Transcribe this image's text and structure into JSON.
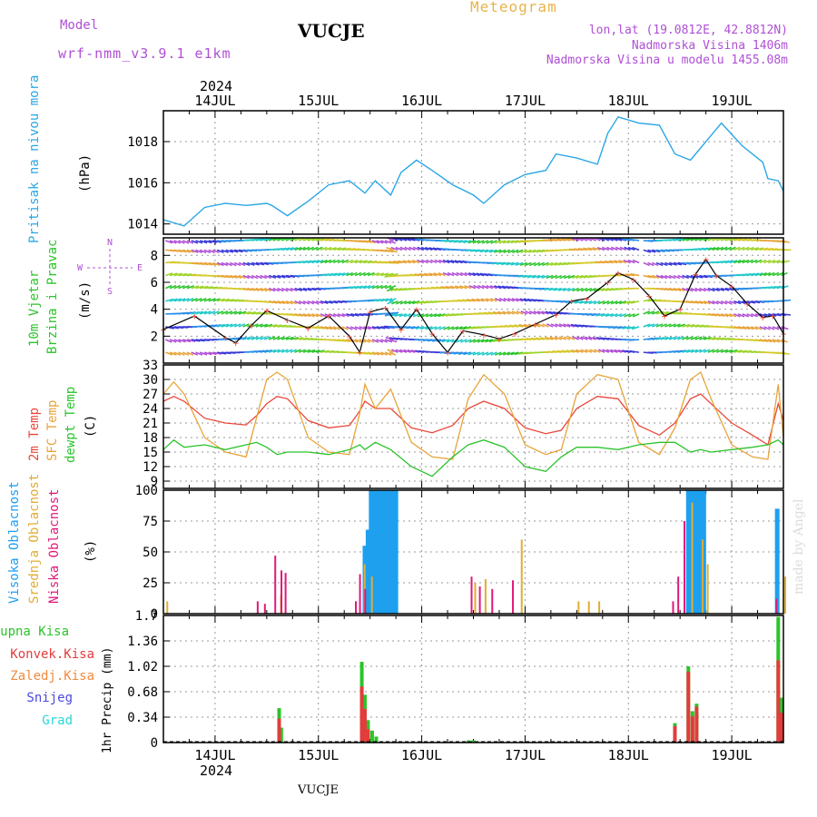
{
  "header": {
    "model_label": "Model",
    "model_name": "wrf-nmm_v3.9.1 e1km",
    "station": "VUCJE",
    "title": "Meteogram",
    "lonlat": "lon,lat (19.0812E, 42.8812N)",
    "elevation": "Nadmorska Visina 1406m",
    "model_elevation": "Nadmorska Visina u modelu 1455.08m"
  },
  "footer": {
    "station": "VUCJE",
    "watermark": "made by Angel"
  },
  "time_axis": {
    "year": "2024",
    "days": [
      "14JUL",
      "15JUL",
      "16JUL",
      "17JUL",
      "18JUL",
      "19JUL"
    ],
    "start_day": 13.5,
    "end_day": 19.5
  },
  "colors": {
    "pressure": "#2aa7e6",
    "temp": "#e9473a",
    "sfc_temp": "#e8a43a",
    "dewpt": "#2cc32c",
    "high_cloud": "#1ea0ef",
    "mid_cloud": "#e0ad36",
    "low_cloud": "#e0197a",
    "total_precip": "#2bc42b",
    "conv_precip": "#e23c3c",
    "frz_precip": "#f08a3c",
    "snow": "#4a4adf",
    "graupel": "#2ad7d7",
    "wind_arrow_label": "#b04fd6"
  },
  "panels": {
    "pressure": {
      "labels": [
        "Pritisak na nivou mora"
      ],
      "unit": "(hPa)",
      "yticks": [
        "1014",
        "1016",
        "1018"
      ]
    },
    "wind": {
      "labels": [
        "10m Vjetar",
        "Brzina i Pravac"
      ],
      "unit": "(m/s)",
      "compass": [
        "N",
        "W",
        "E",
        "S"
      ],
      "yticks": [
        "2",
        "4",
        "6",
        "8"
      ]
    },
    "temperature": {
      "labels": [
        "2m Temp",
        "SFC Temp",
        "dewpt Temp"
      ],
      "unit": "(C)",
      "yticks": [
        "9",
        "12",
        "15",
        "18",
        "21",
        "24",
        "27",
        "30",
        "33"
      ]
    },
    "cloud": {
      "labels": [
        "Visoka Oblacnost",
        "Srednja Oblacnost",
        "Niska Oblacnost"
      ],
      "unit": "(%)",
      "yticks": [
        "0",
        "25",
        "50",
        "75",
        "100"
      ]
    },
    "precip": {
      "labels": [
        "Ukupna Kisa",
        "Konvek.Kisa",
        "Zaledj.Kisa",
        "Snijeg",
        "Grad"
      ],
      "unit": "1hr Precip (mm)",
      "yticks": [
        "0",
        "0.34",
        "0.68",
        "1.02",
        "1.36",
        "1.7"
      ]
    }
  },
  "chart_data": [
    {
      "type": "line",
      "title": "Pritisak na nivou mora",
      "ylabel": "(hPa)",
      "ylim": [
        1013.5,
        1019.5
      ],
      "series": [
        {
          "name": "Pritisak na nivou mora",
          "x_day": [
            13.5,
            13.7,
            13.9,
            14.1,
            14.3,
            14.5,
            14.55,
            14.7,
            14.9,
            15.1,
            15.3,
            15.45,
            15.55,
            15.7,
            15.8,
            15.95,
            16.1,
            16.3,
            16.5,
            16.6,
            16.8,
            17.0,
            17.2,
            17.3,
            17.5,
            17.7,
            17.8,
            17.9,
            18.1,
            18.3,
            18.45,
            18.6,
            18.8,
            18.9,
            19.1,
            19.3,
            19.35,
            19.45,
            19.5
          ],
          "values": [
            1014.2,
            1013.9,
            1014.8,
            1015.0,
            1014.9,
            1015.0,
            1014.9,
            1014.4,
            1015.1,
            1015.9,
            1016.1,
            1015.5,
            1016.1,
            1015.4,
            1016.5,
            1017.1,
            1016.6,
            1015.9,
            1015.4,
            1015.0,
            1015.9,
            1016.4,
            1016.6,
            1017.4,
            1017.2,
            1016.9,
            1018.4,
            1019.2,
            1018.9,
            1018.8,
            1017.4,
            1017.1,
            1018.3,
            1018.9,
            1017.8,
            1017.0,
            1016.2,
            1016.1,
            1015.6
          ]
        }
      ]
    },
    {
      "type": "line",
      "title": "10m Vjetar Brzina i Pravac",
      "ylabel": "(m/s)",
      "ylim": [
        0,
        9.3
      ],
      "series": [
        {
          "name": "10m Vjetar",
          "x_day": [
            13.5,
            13.8,
            14.1,
            14.2,
            14.35,
            14.5,
            14.7,
            14.9,
            15.1,
            15.3,
            15.4,
            15.5,
            15.65,
            15.8,
            15.95,
            16.1,
            16.25,
            16.4,
            16.6,
            16.75,
            16.9,
            17.1,
            17.3,
            17.45,
            17.6,
            17.8,
            17.9,
            18.05,
            18.2,
            18.35,
            18.5,
            18.65,
            18.75,
            18.85,
            19.0,
            19.15,
            19.3,
            19.4,
            19.5
          ],
          "values": [
            2.5,
            3.5,
            1.9,
            1.5,
            2.8,
            3.9,
            3.2,
            2.6,
            3.5,
            2.0,
            0.8,
            3.8,
            4.1,
            2.5,
            4.0,
            2.2,
            0.8,
            2.4,
            2.1,
            1.8,
            2.2,
            2.9,
            3.6,
            4.6,
            4.8,
            6.0,
            6.7,
            6.2,
            5.0,
            3.5,
            4.0,
            6.6,
            7.7,
            6.5,
            5.7,
            4.4,
            3.4,
            3.5,
            2.2
          ]
        }
      ]
    },
    {
      "type": "line",
      "title": "2m Temp / SFC Temp / dewpt Temp",
      "ylabel": "(C)",
      "ylim": [
        7.5,
        33
      ],
      "series": [
        {
          "name": "2m Temp",
          "x_day": [
            13.5,
            13.6,
            13.7,
            13.9,
            14.1,
            14.3,
            14.4,
            14.5,
            14.6,
            14.7,
            14.9,
            15.1,
            15.3,
            15.4,
            15.45,
            15.55,
            15.7,
            15.9,
            16.1,
            16.3,
            16.45,
            16.6,
            16.8,
            17.0,
            17.2,
            17.35,
            17.5,
            17.7,
            17.9,
            18.1,
            18.3,
            18.45,
            18.6,
            18.7,
            18.8,
            19.0,
            19.2,
            19.35,
            19.45,
            19.5
          ],
          "values": [
            25.5,
            26.5,
            25.5,
            22.0,
            21.0,
            20.6,
            22.5,
            25.0,
            26.5,
            26.0,
            21.5,
            20.0,
            20.5,
            23.5,
            25.5,
            24.0,
            24.0,
            20.0,
            19.0,
            20.5,
            24.0,
            25.5,
            24.0,
            20.0,
            18.8,
            19.5,
            24.0,
            26.5,
            26.0,
            20.5,
            18.5,
            21.0,
            26.0,
            27.0,
            25.0,
            21.0,
            18.5,
            16.5,
            25.0,
            21.5
          ]
        },
        {
          "name": "SFC Temp",
          "x_day": [
            13.5,
            13.6,
            13.7,
            13.9,
            14.1,
            14.3,
            14.4,
            14.5,
            14.6,
            14.7,
            14.9,
            15.1,
            15.3,
            15.4,
            15.45,
            15.55,
            15.7,
            15.9,
            16.1,
            16.3,
            16.45,
            16.6,
            16.8,
            17.0,
            17.2,
            17.35,
            17.5,
            17.7,
            17.9,
            18.1,
            18.3,
            18.45,
            18.6,
            18.7,
            18.8,
            19.0,
            19.2,
            19.35,
            19.45,
            19.5
          ],
          "values": [
            27.0,
            29.5,
            27.0,
            18.0,
            15.0,
            14.0,
            22.0,
            30.0,
            31.5,
            30.0,
            18.0,
            15.0,
            14.5,
            23.0,
            29.0,
            24.0,
            28.0,
            17.0,
            14.0,
            13.5,
            26.0,
            31.0,
            27.0,
            16.5,
            14.5,
            15.5,
            27.0,
            31.0,
            30.0,
            17.0,
            14.5,
            20.0,
            30.0,
            31.5,
            26.0,
            16.5,
            14.0,
            13.5,
            29.0,
            18.0
          ]
        },
        {
          "name": "dewpt Temp",
          "x_day": [
            13.5,
            13.6,
            13.7,
            13.9,
            14.1,
            14.3,
            14.4,
            14.5,
            14.6,
            14.7,
            14.9,
            15.1,
            15.3,
            15.4,
            15.45,
            15.55,
            15.7,
            15.9,
            16.1,
            16.3,
            16.45,
            16.6,
            16.8,
            17.0,
            17.2,
            17.35,
            17.5,
            17.7,
            17.9,
            18.1,
            18.3,
            18.45,
            18.6,
            18.7,
            18.8,
            19.0,
            19.2,
            19.35,
            19.45,
            19.5
          ],
          "values": [
            15.5,
            17.5,
            16.0,
            16.5,
            15.5,
            16.5,
            17.0,
            16.0,
            14.5,
            15.0,
            15.0,
            14.5,
            15.5,
            16.5,
            15.5,
            17.0,
            15.5,
            12.0,
            10.0,
            14.0,
            16.5,
            17.5,
            16.0,
            12.0,
            11.0,
            14.0,
            16.0,
            16.0,
            15.5,
            16.5,
            17.0,
            17.0,
            15.0,
            15.5,
            15.0,
            15.5,
            16.0,
            16.5,
            17.5,
            16.5
          ]
        }
      ]
    },
    {
      "type": "bar",
      "title": "Visoka / Srednja / Niska Oblacnost",
      "ylabel": "(%)",
      "ylim": [
        0,
        100
      ],
      "series": [
        {
          "name": "Visoka Oblacnost",
          "x_day": [
            15.45,
            15.48,
            15.51,
            15.54,
            15.57,
            15.6,
            15.63,
            15.66,
            15.69,
            15.72,
            15.75,
            18.58,
            18.61,
            18.64,
            18.67,
            18.7,
            18.73,
            19.44
          ],
          "values": [
            55,
            68,
            100,
            100,
            100,
            100,
            100,
            100,
            100,
            100,
            100,
            100,
            100,
            100,
            100,
            100,
            100,
            85
          ]
        },
        {
          "name": "Srednja Oblacnost",
          "x_day": [
            13.52,
            14.62,
            15.43,
            15.5,
            16.5,
            16.6,
            16.95,
            17.5,
            17.6,
            17.7,
            18.6,
            18.7,
            18.75,
            19.5
          ],
          "values": [
            10,
            15,
            40,
            30,
            25,
            28,
            60,
            10,
            10,
            10,
            90,
            60,
            40,
            30
          ]
        },
        {
          "name": "Niska Oblacnost",
          "x_day": [
            14.43,
            14.5,
            14.6,
            14.66,
            14.7,
            15.38,
            15.42,
            15.47,
            16.5,
            16.58,
            16.7,
            16.9,
            18.45,
            18.5,
            18.56,
            19.45
          ],
          "values": [
            10,
            8,
            47,
            35,
            33,
            10,
            32,
            20,
            30,
            22,
            20,
            27,
            10,
            30,
            75,
            12
          ]
        }
      ]
    },
    {
      "type": "bar",
      "title": "1hr Precip",
      "ylabel": "1hr Precip (mm)",
      "ylim": [
        0,
        1.7
      ],
      "series": [
        {
          "name": "Ukupna Kisa",
          "x_day": [
            14.62,
            14.64,
            15.42,
            15.45,
            15.48,
            15.52,
            15.56,
            16.45,
            16.5,
            18.45,
            18.58,
            18.62,
            18.66,
            19.45,
            19.48
          ],
          "values": [
            0.46,
            0.2,
            1.08,
            0.64,
            0.3,
            0.16,
            0.08,
            0.03,
            0.03,
            0.26,
            1.02,
            0.42,
            0.52,
            1.68,
            0.6
          ]
        },
        {
          "name": "Konvek.Kisa",
          "x_day": [
            14.62,
            15.42,
            15.45,
            15.48,
            18.45,
            18.58,
            18.62,
            18.66,
            19.45,
            19.48
          ],
          "values": [
            0.32,
            0.75,
            0.45,
            0.18,
            0.22,
            0.95,
            0.35,
            0.48,
            1.1,
            0.4
          ]
        }
      ]
    }
  ]
}
